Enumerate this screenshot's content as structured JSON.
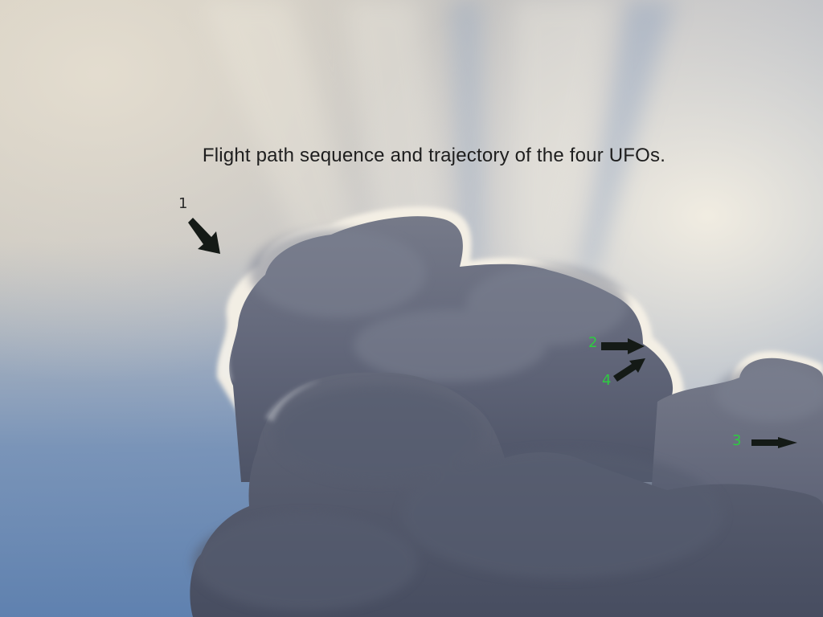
{
  "caption": "Flight path sequence and trajectory of the four UFOs.",
  "markers": {
    "m1": {
      "label": "1",
      "color": "#2a2a2a"
    },
    "m2": {
      "label": "2",
      "color": "#2ecc40"
    },
    "m3": {
      "label": "3",
      "color": "#2ecc40"
    },
    "m4": {
      "label": "4",
      "color": "#2ecc40"
    }
  },
  "colors": {
    "sky_blue": "#6f8fb8",
    "sky_bright": "#e8e2d6",
    "cloud_dark": "#5f6474",
    "arrow": "#141a16"
  }
}
